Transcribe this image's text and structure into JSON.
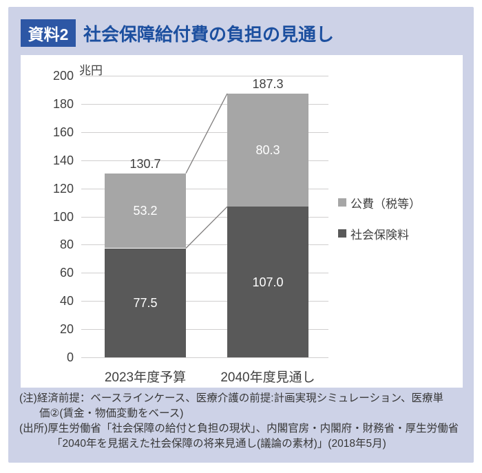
{
  "header": {
    "badge": "資料2",
    "title": "社会保障給付費の負担の見通し"
  },
  "colors": {
    "badge_bg": "#2d57a5",
    "title_text": "#1c4f9f",
    "panel_bg": "#cdd2e7",
    "card_bg": "#ffffff",
    "gridline": "#d0cece",
    "axis_text": "#404040",
    "connector": "#807e7e",
    "series_dark": "#595959",
    "series_light": "#a6a6a6",
    "on_bar_text": "#ffffff",
    "note_text": "#373737"
  },
  "chart_data": {
    "type": "bar",
    "stacked": true,
    "unit_label": "兆円",
    "categories": [
      "2023年度予算",
      "2040年度見通し"
    ],
    "series": [
      {
        "name": "社会保険料",
        "color": "#595959",
        "values": [
          77.5,
          107.0
        ]
      },
      {
        "name": "公費（税等）",
        "color": "#a6a6a6",
        "values": [
          53.2,
          80.3
        ]
      }
    ],
    "totals": [
      130.7,
      187.3
    ],
    "y_axis": {
      "min": 0,
      "max": 200,
      "step": 20
    },
    "grid": true,
    "legend": {
      "position": "right",
      "items": [
        {
          "label": "公費（税等）",
          "color": "#a6a6a6"
        },
        {
          "label": "社会保険料",
          "color": "#595959"
        }
      ]
    }
  },
  "notes": {
    "lines": [
      {
        "text": "(注)経済前提：ベースラインケース、医療介護の前提:計画実現シミュレーション、医療単",
        "indent": 0
      },
      {
        "text": "価②(賃金・物価変動をベース)",
        "indent": 29
      },
      {
        "text": "(出所)厚生労働省「社会保障の給付と負担の現状」、内閣官房・内閣府・財務省・厚生労働省",
        "indent": 0
      },
      {
        "text": "「2040年を見据えた社会保障の将来見通し(議論の素材)」(2018年5月)",
        "indent": 47
      }
    ]
  }
}
